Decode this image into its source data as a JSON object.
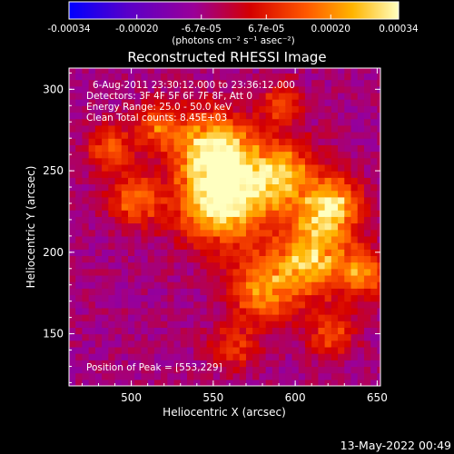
{
  "chart_data": {
    "type": "heatmap",
    "title": "Reconstructed RHESSI Image",
    "xlabel": "Heliocentric X (arcsec)",
    "ylabel": "Heliocentric Y (arcsec)",
    "xlim": [
      462,
      652
    ],
    "ylim": [
      118,
      313
    ],
    "x_ticks": [
      500,
      550,
      600,
      650
    ],
    "y_ticks": [
      150,
      200,
      250,
      300
    ],
    "colorbar": {
      "unit_text": "(photons cm⁻² s⁻¹ asec⁻²)",
      "range": [
        -0.00034,
        0.00034
      ],
      "tick_labels": [
        "-0.00034",
        "-0.00020",
        "-6.7e-05",
        "6.7e-05",
        "0.00020",
        "0.00034"
      ],
      "tick_values": [
        -0.00034,
        -0.0002,
        -6.7e-05,
        6.7e-05,
        0.0002,
        0.00034
      ],
      "colors": [
        "#0000ff",
        "#5a00c8",
        "#9a0098",
        "#d40000",
        "#ff5800",
        "#ffb400",
        "#ffffc0"
      ]
    },
    "annotations": {
      "time_range": "6-Aug-2011 23:30:12.000 to 23:36:12.000",
      "detectors": "Detectors: 3F 4F 5F 6F 7F 8F, Att 0",
      "energy_range": "Energy Range: 25.0 - 50.0 keV",
      "clean": "Clean     Total counts: 8.45E+03",
      "peak": "Position of Peak = [553,229]"
    },
    "peak": {
      "x": 553,
      "y": 229
    },
    "bright_regions": [
      {
        "x": 553,
        "y": 229,
        "intensity": 0.00034,
        "size": 26
      },
      {
        "x": 548,
        "y": 262,
        "intensity": 0.0003,
        "size": 22
      },
      {
        "x": 588,
        "y": 246,
        "intensity": 0.00024,
        "size": 22
      },
      {
        "x": 620,
        "y": 226,
        "intensity": 0.00028,
        "size": 18
      },
      {
        "x": 608,
        "y": 194,
        "intensity": 0.00026,
        "size": 22
      },
      {
        "x": 578,
        "y": 175,
        "intensity": 0.0002,
        "size": 20
      },
      {
        "x": 500,
        "y": 230,
        "intensity": 0.00016,
        "size": 16
      },
      {
        "x": 485,
        "y": 262,
        "intensity": 0.00013,
        "size": 14
      },
      {
        "x": 515,
        "y": 275,
        "intensity": 0.00014,
        "size": 14
      },
      {
        "x": 590,
        "y": 290,
        "intensity": 0.00012,
        "size": 12
      },
      {
        "x": 640,
        "y": 185,
        "intensity": 0.00018,
        "size": 14
      },
      {
        "x": 560,
        "y": 140,
        "intensity": 0.0001,
        "size": 14
      },
      {
        "x": 620,
        "y": 148,
        "intensity": 0.00012,
        "size": 14
      }
    ]
  },
  "footer": {
    "timestamp": "13-May-2022 00:49"
  }
}
